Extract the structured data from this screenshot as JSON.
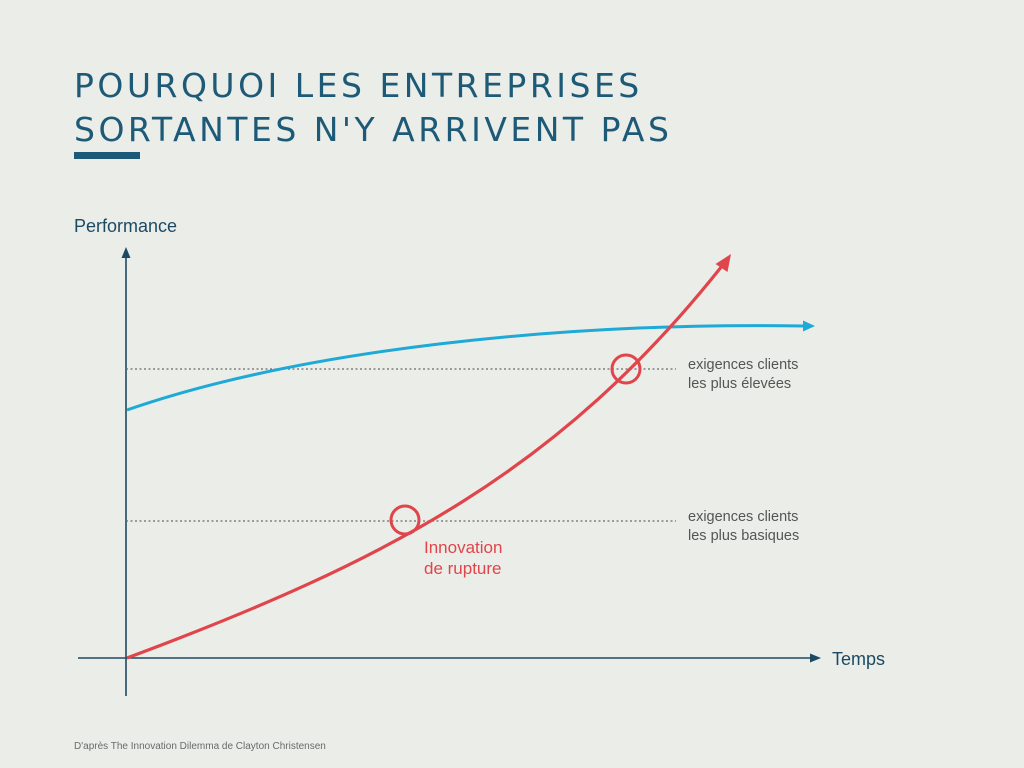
{
  "title": {
    "line1": "POURQUOI LES ENTREPRISES",
    "line2": "SORTANTES N'Y ARRIVENT PAS"
  },
  "axes": {
    "y_label": "Performance",
    "x_label": "Temps"
  },
  "thresholds": {
    "high": {
      "line1": "exigences clients",
      "line2": "les plus élevées"
    },
    "low": {
      "line1": "exigences clients",
      "line2": "les plus basiques"
    }
  },
  "disruptive": {
    "line1": "Innovation",
    "line2": "de rupture"
  },
  "source": "D'après The Innovation Dilemma de Clayton Christensen",
  "colors": {
    "title": "#1d5a78",
    "axis": "#1d4a63",
    "incumbent_curve": "#1fa9d6",
    "disruptive_curve": "#e0454b",
    "threshold_line": "#6b6b6b",
    "label_text": "#555555",
    "background": "#ebede8"
  }
}
